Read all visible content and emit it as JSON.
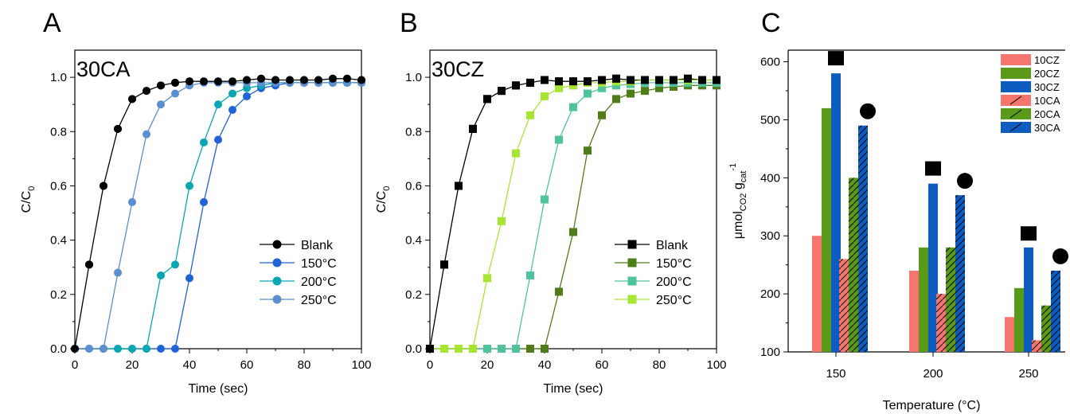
{
  "panel_letters": [
    "A",
    "B",
    "C"
  ],
  "colors": {
    "blank": "#000000",
    "a_150": "#1f63d6",
    "a_200": "#0aa6b4",
    "a_250": "#5b8fd0",
    "b_150": "#4f7d18",
    "b_200": "#4fc39c",
    "b_250": "#a7e630",
    "cz_10": "#f4766f",
    "cz_20": "#5b9a19",
    "cz_30": "#0d5cbf"
  },
  "chart_data": [
    {
      "type": "line",
      "panel": "A",
      "title": "30CA",
      "xlabel": "Time (sec)",
      "ylabel": "C/C",
      "ylabel_sub": "0",
      "xlim": [
        0,
        100
      ],
      "ylim": [
        0,
        1.1
      ],
      "xticks": [
        "0",
        "20",
        "40",
        "60",
        "80",
        "100"
      ],
      "yticks": [
        "0.0",
        "0.2",
        "0.4",
        "0.6",
        "0.8",
        "1.0"
      ],
      "marker": "circle",
      "legend_position": "bottom-right",
      "series": [
        {
          "name": "Blank",
          "color": "#000000",
          "x": [
            0,
            5,
            10,
            15,
            20,
            25,
            30,
            35,
            40,
            45,
            50,
            55,
            60,
            65,
            70,
            75,
            80,
            85,
            90,
            95,
            100
          ],
          "y": [
            0.0,
            0.31,
            0.6,
            0.81,
            0.92,
            0.95,
            0.97,
            0.98,
            0.985,
            0.985,
            0.985,
            0.985,
            0.99,
            0.995,
            0.99,
            0.99,
            0.99,
            0.99,
            0.995,
            0.995,
            0.99
          ]
        },
        {
          "name": "150°C",
          "color": "#1f63d6",
          "x": [
            0,
            5,
            10,
            15,
            20,
            25,
            30,
            35,
            40,
            45,
            50,
            55,
            60,
            65,
            70,
            75,
            80,
            85,
            90,
            95,
            100
          ],
          "y": [
            0.0,
            0.0,
            0.0,
            0.0,
            0.0,
            0.0,
            0.0,
            0.0,
            0.26,
            0.54,
            0.77,
            0.88,
            0.93,
            0.96,
            0.97,
            0.98,
            0.98,
            0.98,
            0.98,
            0.98,
            0.98
          ]
        },
        {
          "name": "200°C",
          "color": "#0aa6b4",
          "x": [
            0,
            5,
            10,
            15,
            20,
            25,
            30,
            35,
            40,
            45,
            50,
            55,
            60,
            65,
            70,
            75,
            80,
            85,
            90,
            95,
            100
          ],
          "y": [
            0.0,
            0.0,
            0.0,
            0.0,
            0.0,
            0.0,
            0.27,
            0.31,
            0.6,
            0.76,
            0.9,
            0.94,
            0.96,
            0.97,
            0.98,
            0.98,
            0.98,
            0.98,
            0.98,
            0.98,
            0.98
          ]
        },
        {
          "name": "250°C",
          "color": "#5b8fd0",
          "x": [
            0,
            5,
            10,
            15,
            20,
            25,
            30,
            35,
            40,
            45,
            50,
            55,
            60,
            65,
            70,
            75,
            80,
            85,
            90,
            95,
            100
          ],
          "y": [
            0.0,
            0.0,
            0.0,
            0.28,
            0.54,
            0.79,
            0.9,
            0.94,
            0.97,
            0.98,
            0.98,
            0.98,
            0.98,
            0.98,
            0.98,
            0.98,
            0.98,
            0.98,
            0.98,
            0.98,
            0.98
          ]
        }
      ]
    },
    {
      "type": "line",
      "panel": "B",
      "title": "30CZ",
      "xlabel": "Time (sec)",
      "ylabel": "C/C",
      "ylabel_sub": "0",
      "xlim": [
        0,
        100
      ],
      "ylim": [
        0,
        1.1
      ],
      "xticks": [
        "0",
        "20",
        "40",
        "60",
        "80",
        "100"
      ],
      "yticks": [
        "0.0",
        "0.2",
        "0.4",
        "0.6",
        "0.8",
        "1.0"
      ],
      "marker": "square",
      "legend_position": "bottom-right",
      "series": [
        {
          "name": "Blank",
          "color": "#000000",
          "x": [
            0,
            5,
            10,
            15,
            20,
            25,
            30,
            35,
            40,
            45,
            50,
            55,
            60,
            65,
            70,
            75,
            80,
            85,
            90,
            95,
            100
          ],
          "y": [
            0.0,
            0.31,
            0.6,
            0.81,
            0.92,
            0.95,
            0.97,
            0.98,
            0.99,
            0.985,
            0.985,
            0.985,
            0.99,
            0.995,
            0.99,
            0.99,
            0.99,
            0.99,
            0.995,
            0.99,
            0.99
          ]
        },
        {
          "name": "150°C",
          "color": "#4f7d18",
          "x": [
            0,
            5,
            10,
            15,
            20,
            25,
            30,
            35,
            40,
            45,
            50,
            55,
            60,
            65,
            70,
            75,
            80,
            85,
            90,
            95,
            100
          ],
          "y": [
            0.0,
            0.0,
            0.0,
            0.0,
            0.0,
            0.0,
            0.0,
            0.0,
            0.0,
            0.21,
            0.43,
            0.73,
            0.86,
            0.92,
            0.94,
            0.95,
            0.96,
            0.965,
            0.97,
            0.97,
            0.97
          ]
        },
        {
          "name": "200°C",
          "color": "#4fc39c",
          "x": [
            0,
            5,
            10,
            15,
            20,
            25,
            30,
            35,
            40,
            45,
            50,
            55,
            60,
            65,
            70,
            75,
            80,
            85,
            90,
            95,
            100
          ],
          "y": [
            0.0,
            0.0,
            0.0,
            0.0,
            0.0,
            0.0,
            0.0,
            0.27,
            0.55,
            0.77,
            0.89,
            0.94,
            0.96,
            0.97,
            0.975,
            0.98,
            0.98,
            0.98,
            0.98,
            0.98,
            0.98
          ]
        },
        {
          "name": "250°C",
          "color": "#a7e630",
          "x": [
            0,
            5,
            10,
            15,
            20,
            25,
            30,
            35,
            40,
            45,
            50,
            55,
            60,
            65,
            70,
            75,
            80,
            85,
            90,
            95,
            100
          ],
          "y": [
            0.0,
            0.0,
            0.0,
            0.0,
            0.26,
            0.47,
            0.72,
            0.86,
            0.93,
            0.96,
            0.97,
            0.98,
            0.98,
            0.985,
            0.985,
            0.99,
            0.99,
            0.99,
            0.99,
            0.99,
            0.99
          ]
        }
      ]
    },
    {
      "type": "bar",
      "panel": "C",
      "xlabel": "Temperature (°C)",
      "ylabel_main": "μmol",
      "ylabel_sub1": "CO2",
      "ylabel_mid": " g",
      "ylabel_sub2": "cat",
      "ylabel_sup": "-1",
      "categories": [
        "150",
        "200",
        "250"
      ],
      "ylim": [
        100,
        620
      ],
      "yticks": [
        "100",
        "200",
        "300",
        "400",
        "500",
        "600"
      ],
      "legend_position": "top-right",
      "series": [
        {
          "name": "10CZ",
          "color": "#f4766f",
          "hatch": false,
          "values": [
            300,
            240,
            160
          ]
        },
        {
          "name": "20CZ",
          "color": "#5b9a19",
          "hatch": false,
          "values": [
            520,
            280,
            210
          ]
        },
        {
          "name": "30CZ",
          "color": "#0d5cbf",
          "hatch": false,
          "values": [
            580,
            390,
            280
          ]
        },
        {
          "name": "10CA",
          "color": "#f4766f",
          "hatch": true,
          "values": [
            260,
            200,
            120
          ]
        },
        {
          "name": "20CA",
          "color": "#5b9a19",
          "hatch": true,
          "values": [
            400,
            280,
            180
          ]
        },
        {
          "name": "30CA",
          "color": "#0d5cbf",
          "hatch": true,
          "values": [
            490,
            370,
            240
          ]
        }
      ],
      "annotations": [
        {
          "symbol": "square",
          "category": "150",
          "group": "CZ",
          "value": 602
        },
        {
          "symbol": "circle",
          "category": "150",
          "group": "CA",
          "value": 512
        },
        {
          "symbol": "square",
          "category": "200",
          "group": "CZ",
          "value": 412
        },
        {
          "symbol": "circle",
          "category": "200",
          "group": "CA",
          "value": 392
        },
        {
          "symbol": "square",
          "category": "250",
          "group": "CZ",
          "value": 300
        },
        {
          "symbol": "circle",
          "category": "250",
          "group": "CA",
          "value": 262
        }
      ]
    }
  ]
}
